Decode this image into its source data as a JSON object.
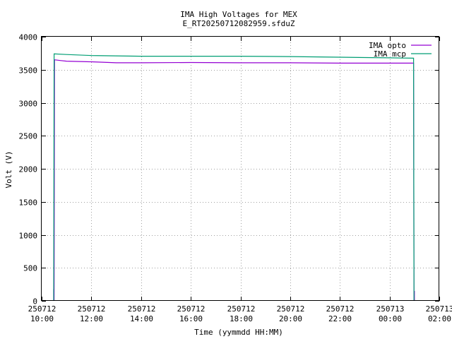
{
  "chart_data": {
    "type": "line",
    "title": "IMA High Voltages for MEX",
    "subtitle": "E_RT20250712082959.sfduZ",
    "xlabel": "Time (yymmdd HH:MM)",
    "ylabel": "Volt (V)",
    "xlim": [
      "2025-07-12 10:00",
      "2025-07-13 02:00"
    ],
    "ylim": [
      0,
      4000
    ],
    "yticks": [
      0,
      500,
      1000,
      1500,
      2000,
      2500,
      3000,
      3500,
      4000
    ],
    "xticks": [
      {
        "date": "250712",
        "time": "10:00"
      },
      {
        "date": "250712",
        "time": "12:00"
      },
      {
        "date": "250712",
        "time": "14:00"
      },
      {
        "date": "250712",
        "time": "16:00"
      },
      {
        "date": "250712",
        "time": "18:00"
      },
      {
        "date": "250712",
        "time": "20:00"
      },
      {
        "date": "250712",
        "time": "22:00"
      },
      {
        "date": "250713",
        "time": "00:00"
      },
      {
        "date": "250713",
        "time": "02:00"
      }
    ],
    "grid": true,
    "legend_position": "top-right",
    "series": [
      {
        "name": "IMA opto",
        "color": "#9400d3",
        "points": [
          [
            "2025-07-12 10:29",
            0
          ],
          [
            "2025-07-12 10:29",
            180
          ],
          [
            "2025-07-12 10:30",
            0
          ],
          [
            "2025-07-12 10:31",
            3650
          ],
          [
            "2025-07-12 10:45",
            3640
          ],
          [
            "2025-07-12 11:00",
            3630
          ],
          [
            "2025-07-12 12:00",
            3620
          ],
          [
            "2025-07-12 13:00",
            3605
          ],
          [
            "2025-07-12 14:00",
            3605
          ],
          [
            "2025-07-12 16:00",
            3610
          ],
          [
            "2025-07-12 18:00",
            3605
          ],
          [
            "2025-07-12 20:00",
            3605
          ],
          [
            "2025-07-12 22:00",
            3600
          ],
          [
            "2025-07-13 00:00",
            3600
          ],
          [
            "2025-07-13 00:58",
            3600
          ],
          [
            "2025-07-13 00:59",
            0
          ],
          [
            "2025-07-13 01:00",
            150
          ],
          [
            "2025-07-13 01:00",
            0
          ]
        ]
      },
      {
        "name": "IMA mcp",
        "color": "#009e73",
        "points": [
          [
            "2025-07-12 10:29",
            0
          ],
          [
            "2025-07-12 10:30",
            3740
          ],
          [
            "2025-07-12 11:00",
            3730
          ],
          [
            "2025-07-12 12:00",
            3715
          ],
          [
            "2025-07-12 14:00",
            3705
          ],
          [
            "2025-07-12 16:00",
            3705
          ],
          [
            "2025-07-12 18:00",
            3705
          ],
          [
            "2025-07-12 20:00",
            3700
          ],
          [
            "2025-07-12 22:00",
            3690
          ],
          [
            "2025-07-13 00:00",
            3680
          ],
          [
            "2025-07-13 00:58",
            3675
          ],
          [
            "2025-07-13 00:59",
            0
          ]
        ]
      }
    ]
  }
}
